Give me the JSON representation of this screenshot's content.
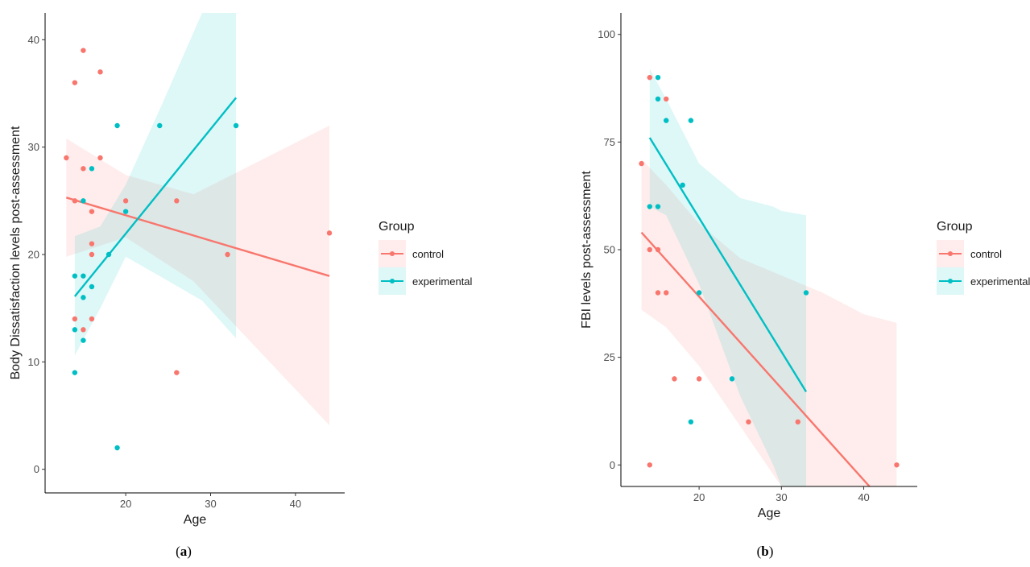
{
  "colors": {
    "control": "#F8766D",
    "experimental": "#00BFC4"
  },
  "chart_data": [
    {
      "type": "scatter",
      "caption": "a",
      "xlabel": "Age",
      "ylabel": "Body Dissatisfaction levels post-assessment",
      "xlim": [
        10.5,
        45.8
      ],
      "ylim": [
        -2.2,
        42.5
      ],
      "xticks": [
        20,
        30,
        40
      ],
      "yticks": [
        0,
        10,
        20,
        30,
        40
      ],
      "grid": false,
      "legend": {
        "title": "Group",
        "placement": "right"
      },
      "series": [
        {
          "name": "control",
          "points": [
            [
              13,
              29
            ],
            [
              14,
              36
            ],
            [
              14,
              25
            ],
            [
              14,
              14
            ],
            [
              15,
              39
            ],
            [
              15,
              28
            ],
            [
              15,
              13
            ],
            [
              16,
              24
            ],
            [
              16,
              21
            ],
            [
              16,
              20
            ],
            [
              16,
              14
            ],
            [
              17,
              37
            ],
            [
              17,
              29
            ],
            [
              20,
              25
            ],
            [
              26,
              25
            ],
            [
              26,
              9
            ],
            [
              32,
              20
            ],
            [
              44,
              22
            ]
          ],
          "fit": {
            "x": [
              13,
              44
            ],
            "y": [
              25.3,
              18.0
            ]
          },
          "band": {
            "x": [
              13,
              20,
              28,
              44
            ],
            "upper": [
              30.8,
              27.4,
              25.6,
              32.0
            ],
            "lower": [
              19.8,
              21.6,
              17.5,
              4.1
            ]
          }
        },
        {
          "name": "experimental",
          "points": [
            [
              14,
              18
            ],
            [
              14,
              13
            ],
            [
              14,
              9
            ],
            [
              15,
              25
            ],
            [
              15,
              18
            ],
            [
              15,
              16
            ],
            [
              15,
              12
            ],
            [
              16,
              28
            ],
            [
              16,
              17
            ],
            [
              18,
              20
            ],
            [
              19,
              32
            ],
            [
              19,
              2
            ],
            [
              20,
              24
            ],
            [
              24,
              32
            ],
            [
              33,
              32
            ]
          ],
          "fit": {
            "x": [
              14,
              33
            ],
            "y": [
              16.1,
              34.6
            ]
          },
          "band": {
            "x": [
              14,
              17,
              20,
              24,
              29,
              33
            ],
            "upper": [
              21.7,
              22.6,
              26.5,
              33.5,
              42.5,
              42.5
            ],
            "lower": [
              10.6,
              15.0,
              19.8,
              18.0,
              15.7,
              12.2
            ]
          }
        }
      ]
    },
    {
      "type": "scatter",
      "caption": "b",
      "xlabel": "Age",
      "ylabel": "FBI levels post-assessment",
      "xlim": [
        10.5,
        46.5
      ],
      "ylim": [
        -5,
        105
      ],
      "xticks": [
        20,
        30,
        40
      ],
      "yticks": [
        0,
        25,
        50,
        75,
        100
      ],
      "grid": false,
      "legend": {
        "title": "Group",
        "placement": "right"
      },
      "series": [
        {
          "name": "control",
          "points": [
            [
              13,
              70
            ],
            [
              14,
              90
            ],
            [
              14,
              50
            ],
            [
              14,
              0
            ],
            [
              15,
              50
            ],
            [
              15,
              40
            ],
            [
              16,
              85
            ],
            [
              16,
              40
            ],
            [
              17,
              20
            ],
            [
              20,
              20
            ],
            [
              26,
              10
            ],
            [
              32,
              10
            ],
            [
              44,
              0
            ]
          ],
          "fit": {
            "x": [
              13,
              40.7
            ],
            "y": [
              54,
              -5
            ]
          },
          "band": {
            "x": [
              13,
              16,
              20,
              25,
              30,
              35,
              40,
              44
            ],
            "upper": [
              71,
              65,
              56,
              48,
              44,
              40,
              35,
              33
            ],
            "lower": [
              36,
              32,
              23,
              9,
              -5,
              -5,
              -5,
              -5
            ]
          }
        },
        {
          "name": "experimental",
          "points": [
            [
              14,
              60
            ],
            [
              15,
              90
            ],
            [
              15,
              85
            ],
            [
              15,
              60
            ],
            [
              16,
              80
            ],
            [
              18,
              65
            ],
            [
              19,
              80
            ],
            [
              19,
              10
            ],
            [
              20,
              40
            ],
            [
              24,
              20
            ],
            [
              33,
              40
            ]
          ],
          "fit": {
            "x": [
              14,
              33
            ],
            "y": [
              76,
              17
            ]
          },
          "band": {
            "x": [
              14,
              16,
              20,
              25,
              29,
              30,
              33
            ],
            "upper": [
              92,
              85,
              70,
              62,
              60,
              59,
              58
            ],
            "lower": [
              60,
              58,
              42,
              16,
              0,
              -5,
              -5
            ]
          }
        }
      ]
    }
  ]
}
